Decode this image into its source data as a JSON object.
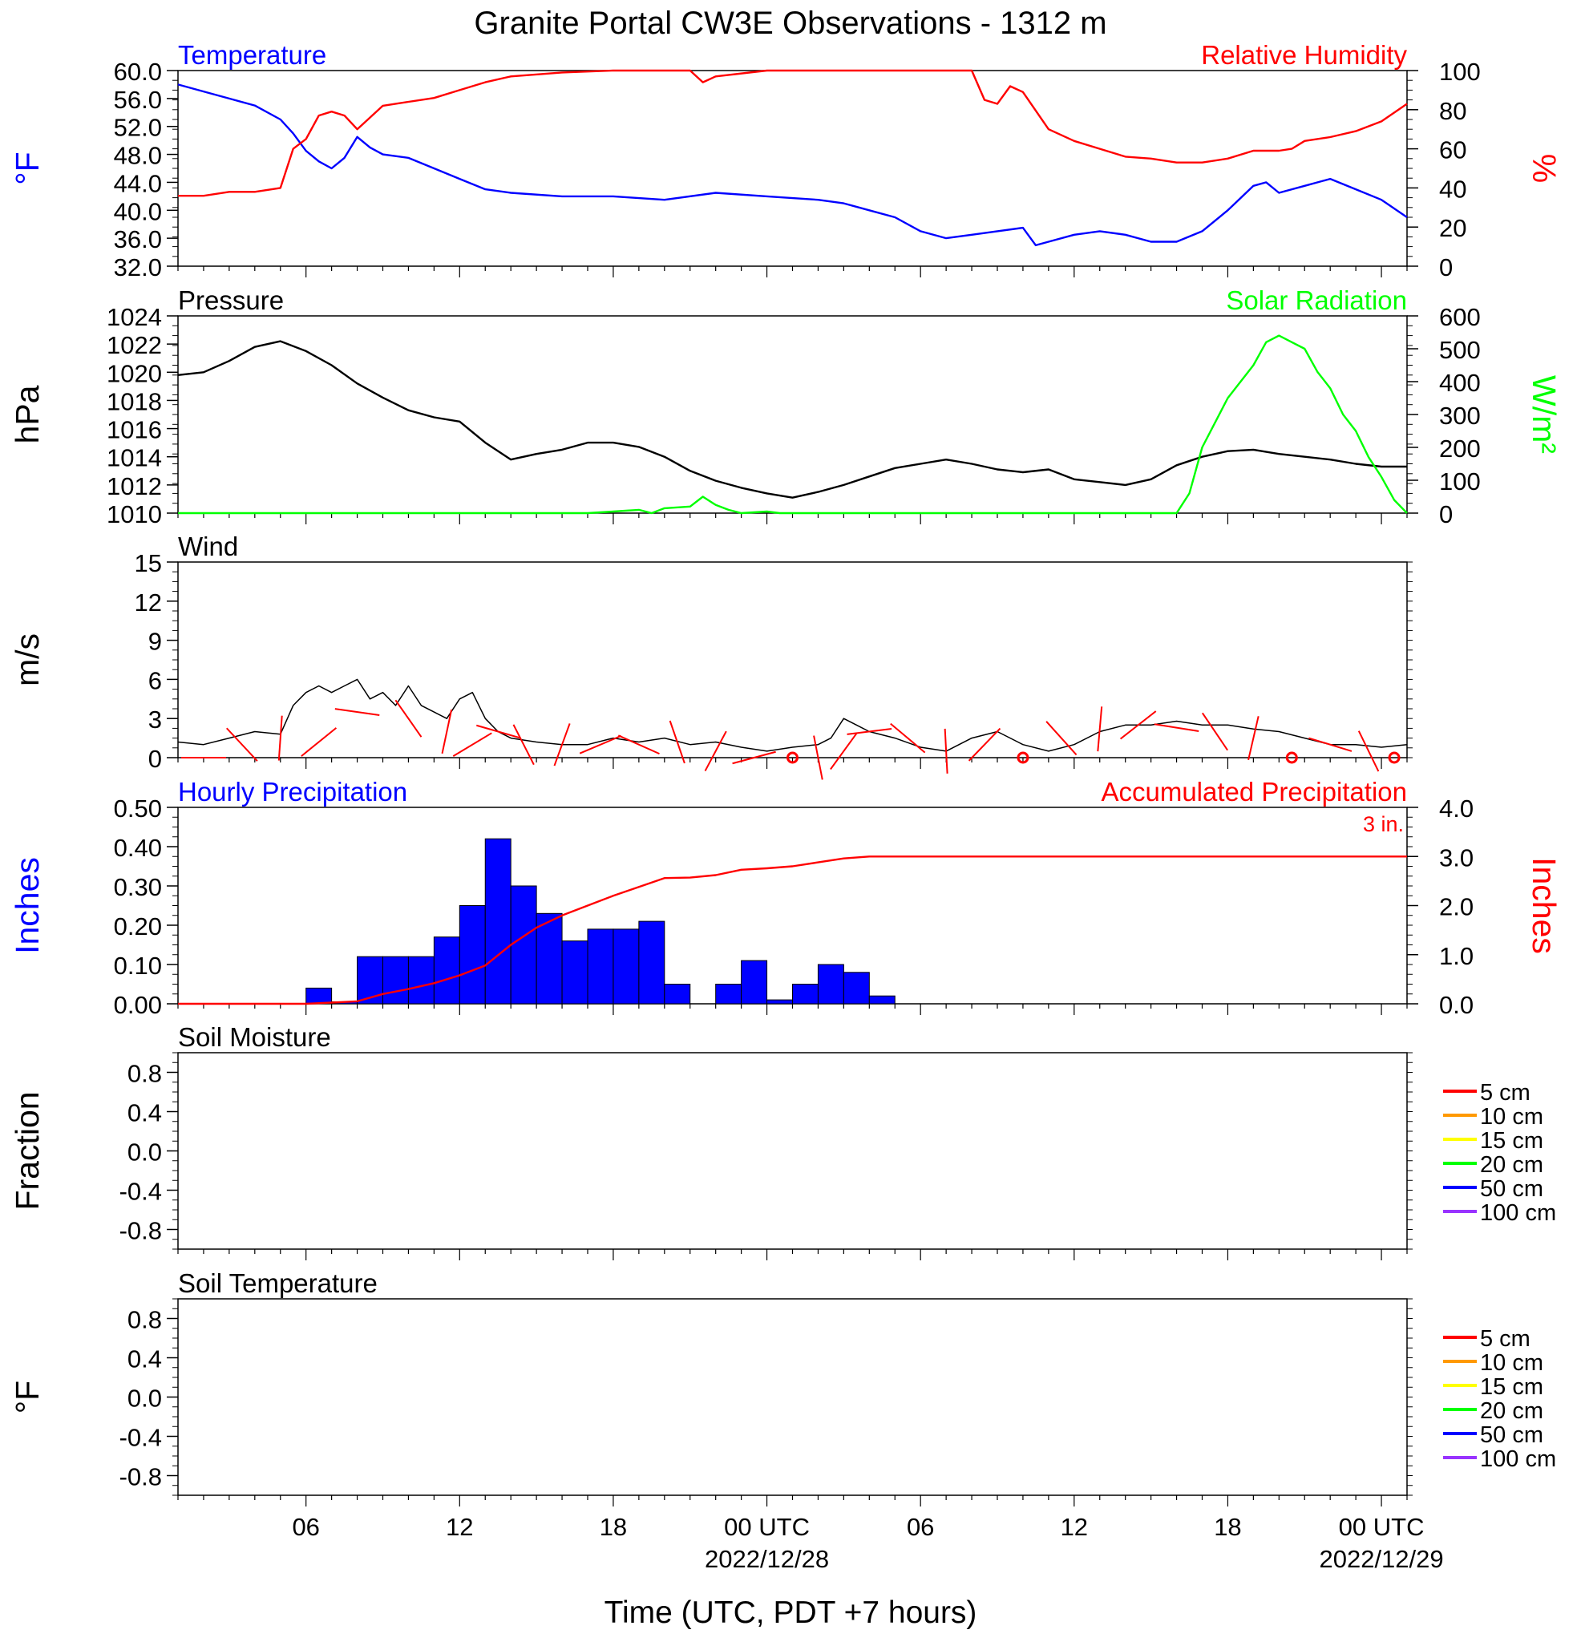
{
  "figure": {
    "title": "Granite Portal CW3E Observations - 1312 m",
    "x_axis_label": "Time (UTC, PDT +7 hours)",
    "x_ticks": [
      {
        "hour": 6,
        "label": "06",
        "date": ""
      },
      {
        "hour": 12,
        "label": "12",
        "date": ""
      },
      {
        "hour": 18,
        "label": "18",
        "date": ""
      },
      {
        "hour": 24,
        "label": "00 UTC",
        "date": "2022/12/28"
      },
      {
        "hour": 30,
        "label": "06",
        "date": ""
      },
      {
        "hour": 36,
        "label": "12",
        "date": ""
      },
      {
        "hour": 42,
        "label": "18",
        "date": ""
      },
      {
        "hour": 48,
        "label": "00 UTC",
        "date": "2022/12/29"
      }
    ],
    "x_range_hours": [
      1,
      49
    ]
  },
  "colors": {
    "temperature": "#0000ff",
    "humidity": "#ff0000",
    "pressure": "#000000",
    "solar": "#00ff00",
    "wind": "#000000",
    "wind_barb": "#ff0000",
    "hourly_precip": "#0000ff",
    "accum_precip": "#ff0000"
  },
  "chart_data": [
    {
      "type": "line",
      "panel": "temperature-humidity",
      "left_title": "Temperature",
      "right_title": "Relative Humidity",
      "ylabel_left": "°F",
      "ylabel_right": "%",
      "ylim_left": [
        32,
        60
      ],
      "ylim_right": [
        0,
        100
      ],
      "yticks_left": [
        "60.0",
        "56.0",
        "52.0",
        "48.0",
        "44.0",
        "40.0",
        "36.0",
        "32.0"
      ],
      "yticks_right": [
        "100",
        "80",
        "60",
        "40",
        "20",
        "0"
      ],
      "series": [
        {
          "name": "Temperature",
          "axis": "left",
          "x": [
            1,
            2,
            3,
            4,
            5,
            5.5,
            6,
            6.5,
            7,
            7.5,
            8,
            8.5,
            9,
            10,
            11,
            12,
            13,
            14,
            16,
            18,
            20,
            22,
            24,
            26,
            27,
            28,
            29,
            30,
            31,
            32,
            33,
            34,
            34.5,
            35,
            36,
            37,
            38,
            39,
            40,
            41,
            42,
            43,
            43.5,
            44,
            45,
            46,
            47,
            48,
            49
          ],
          "y": [
            58,
            57,
            56,
            55,
            53,
            51,
            48.5,
            47,
            46,
            47.5,
            50.5,
            49,
            48,
            47.5,
            46,
            44.5,
            43,
            42.5,
            42,
            42,
            41.5,
            42.5,
            42,
            41.5,
            41,
            40,
            39,
            37,
            36,
            36.5,
            37,
            37.5,
            35,
            35.5,
            36.5,
            37,
            36.5,
            35.5,
            35.5,
            37,
            40,
            43.5,
            44,
            42.5,
            43.5,
            44.5,
            43,
            41.5,
            39
          ]
        },
        {
          "name": "Relative Humidity",
          "axis": "right",
          "x": [
            1,
            2,
            3,
            4,
            5,
            5.5,
            6,
            6.5,
            7,
            7.5,
            8,
            8.5,
            9,
            10,
            11,
            12,
            13,
            14,
            16,
            18,
            20,
            21,
            21.5,
            22,
            24,
            26,
            28,
            30,
            31,
            32,
            32.5,
            33,
            33.5,
            34,
            35,
            36,
            37,
            38,
            39,
            40,
            41,
            42,
            43,
            44,
            44.5,
            45,
            46,
            47,
            48,
            49
          ],
          "y": [
            36,
            36,
            38,
            38,
            40,
            60,
            65,
            77,
            79,
            77,
            70,
            76,
            82,
            84,
            86,
            90,
            94,
            97,
            99,
            100,
            100,
            100,
            94,
            97,
            100,
            100,
            100,
            100,
            100,
            100,
            85,
            83,
            92,
            89,
            70,
            64,
            60,
            56,
            55,
            53,
            53,
            55,
            59,
            59,
            60,
            64,
            66,
            69,
            74,
            83
          ]
        }
      ]
    },
    {
      "type": "line",
      "panel": "pressure-solar",
      "left_title": "Pressure",
      "right_title": "Solar Radiation",
      "ylabel_left": "hPa",
      "ylabel_right": "W/m²",
      "ylim_left": [
        1010,
        1024
      ],
      "ylim_right": [
        0,
        600
      ],
      "yticks_left": [
        "1024",
        "1022",
        "1020",
        "1018",
        "1016",
        "1014",
        "1012",
        "1010"
      ],
      "yticks_right": [
        "600",
        "500",
        "400",
        "300",
        "200",
        "100",
        "0"
      ],
      "series": [
        {
          "name": "Pressure",
          "axis": "left",
          "x": [
            1,
            2,
            3,
            4,
            5,
            6,
            7,
            8,
            9,
            10,
            11,
            12,
            13,
            14,
            15,
            16,
            17,
            18,
            19,
            20,
            21,
            22,
            23,
            24,
            25,
            26,
            27,
            28,
            29,
            30,
            31,
            32,
            33,
            34,
            35,
            36,
            37,
            38,
            39,
            40,
            41,
            42,
            43,
            44,
            45,
            46,
            47,
            48,
            49
          ],
          "y": [
            1019.8,
            1020,
            1020.8,
            1021.8,
            1022.2,
            1021.5,
            1020.5,
            1019.2,
            1018.2,
            1017.3,
            1016.8,
            1016.5,
            1015,
            1013.8,
            1014.2,
            1014.5,
            1015,
            1015,
            1014.7,
            1014,
            1013,
            1012.3,
            1011.8,
            1011.4,
            1011.1,
            1011.5,
            1012,
            1012.6,
            1013.2,
            1013.5,
            1013.8,
            1013.5,
            1013.1,
            1012.9,
            1013.1,
            1012.4,
            1012.2,
            1012,
            1012.4,
            1013.4,
            1014,
            1014.4,
            1014.5,
            1014.2,
            1014,
            1013.8,
            1013.5,
            1013.3,
            1013.3
          ],
          "note": ""
        },
        {
          "name": "Solar Radiation",
          "axis": "right",
          "x": [
            1,
            16,
            17,
            18,
            19,
            19.5,
            20,
            21,
            21.5,
            22,
            22.5,
            23,
            24,
            24.5,
            25,
            40,
            40.5,
            41,
            42,
            43,
            43.5,
            44,
            44.5,
            45,
            45.5,
            46,
            46.5,
            47,
            47.5,
            48,
            48.5,
            49
          ],
          "y": [
            0,
            0,
            0,
            5,
            10,
            0,
            15,
            20,
            50,
            25,
            10,
            0,
            5,
            0,
            0,
            0,
            60,
            200,
            350,
            450,
            520,
            540,
            520,
            500,
            430,
            380,
            300,
            250,
            170,
            110,
            40,
            0
          ]
        }
      ]
    },
    {
      "type": "line",
      "panel": "wind",
      "left_title": "Wind",
      "ylabel_left": "m/s",
      "ylim_left": [
        0,
        15
      ],
      "yticks_left": [
        "15",
        "12",
        "9",
        "6",
        "3",
        "0"
      ],
      "series": [
        {
          "name": "Wind",
          "axis": "left",
          "x": [
            1,
            2,
            3,
            4,
            5,
            5.5,
            6,
            6.5,
            7,
            7.5,
            8,
            8.5,
            9,
            9.5,
            10,
            10.5,
            11,
            11.5,
            12,
            12.5,
            13,
            13.5,
            14,
            15,
            16,
            17,
            18,
            19,
            20,
            21,
            22,
            23,
            24,
            25,
            26,
            26.5,
            27,
            27.5,
            28,
            29,
            30,
            31,
            32,
            33,
            34,
            35,
            36,
            37,
            38,
            39,
            40,
            41,
            42,
            43,
            44,
            45,
            46,
            47,
            48,
            49
          ],
          "y": [
            1.2,
            1,
            1.5,
            2,
            1.8,
            4,
            5,
            5.5,
            5,
            5.5,
            6,
            4.5,
            5,
            4,
            5.5,
            4,
            3.5,
            3,
            4.5,
            5,
            3,
            2,
            1.5,
            1.2,
            1,
            1,
            1.5,
            1.2,
            1.5,
            1,
            1.2,
            0.8,
            0.5,
            0.8,
            1,
            1.5,
            3,
            2.5,
            2,
            1.5,
            0.8,
            0.5,
            1.5,
            2,
            1,
            0.5,
            1,
            2,
            2.5,
            2.5,
            2.8,
            2.5,
            2.5,
            2.2,
            2,
            1.5,
            1,
            1,
            0.8,
            1
          ]
        },
        {
          "name": "Wind barbs",
          "axis": "left",
          "x": [
            2,
            3.5,
            5,
            6.5,
            8,
            10,
            11.5,
            12.5,
            13.5,
            14.5,
            16,
            17.5,
            19,
            20.5,
            22,
            23.5,
            25,
            26,
            27,
            28,
            29.5,
            31,
            32.5,
            34,
            35.5,
            37,
            38.5,
            40,
            41.5,
            43,
            44.5,
            46,
            47.5,
            48.5
          ],
          "y": [
            0,
            1,
            1.5,
            1.2,
            3.5,
            3,
            2,
            1,
            2,
            1,
            1,
            1,
            1,
            1.2,
            0.5,
            0,
            0,
            0,
            0.5,
            2,
            1.5,
            0.5,
            1,
            0,
            1.5,
            2.2,
            2.5,
            2.3,
            2,
            1.5,
            0,
            1,
            0.5,
            0
          ]
        }
      ]
    },
    {
      "type": "bar",
      "panel": "precipitation",
      "left_title": "Hourly Precipitation",
      "right_title": "Accumulated Precipitation",
      "total_label": "3 in.",
      "ylabel_left": "Inches",
      "ylabel_right": "Inches",
      "ylim_left": [
        0,
        0.5
      ],
      "ylim_right": [
        0,
        4
      ],
      "yticks_left": [
        "0.50",
        "0.40",
        "0.30",
        "0.20",
        "0.10",
        "0.00"
      ],
      "yticks_right": [
        "4.0",
        "3.0",
        "2.0",
        "1.0",
        "0.0"
      ],
      "categories": [
        6,
        7,
        8,
        9,
        10,
        11,
        12,
        13,
        14,
        15,
        16,
        17,
        18,
        19,
        20,
        21,
        22,
        23,
        24,
        25,
        26,
        27,
        28
      ],
      "values": [
        0.04,
        0.005,
        0.12,
        0.12,
        0.12,
        0.17,
        0.25,
        0.42,
        0.3,
        0.23,
        0.16,
        0.19,
        0.19,
        0.21,
        0.05,
        0.0,
        0.05,
        0.11,
        0.01,
        0.05,
        0.1,
        0.08,
        0.02
      ],
      "series": [
        {
          "name": "Accumulated Precipitation",
          "axis": "right",
          "x": [
            1,
            6,
            8,
            9,
            10,
            11,
            12,
            13,
            14,
            15,
            16,
            17,
            18,
            19,
            20,
            21,
            22,
            23,
            24,
            25,
            26,
            27,
            28,
            49
          ],
          "y": [
            0,
            0,
            0.05,
            0.2,
            0.3,
            0.42,
            0.58,
            0.78,
            1.2,
            1.55,
            1.8,
            2.0,
            2.2,
            2.38,
            2.56,
            2.57,
            2.62,
            2.73,
            2.76,
            2.8,
            2.88,
            2.96,
            3.0,
            3.0
          ]
        }
      ]
    },
    {
      "type": "line",
      "panel": "soil-moisture",
      "left_title": "Soil Moisture",
      "ylabel_left": "Fraction",
      "ylim_left": [
        -1,
        1
      ],
      "yticks_left": [
        "0.8",
        "0.4",
        "0.0",
        "-0.4",
        "-0.8"
      ],
      "legend": [
        {
          "label": "5 cm",
          "color": "#ff0000"
        },
        {
          "label": "10 cm",
          "color": "#ff9900"
        },
        {
          "label": "15 cm",
          "color": "#ffff00"
        },
        {
          "label": "20 cm",
          "color": "#00ff00"
        },
        {
          "label": "50 cm",
          "color": "#0000ff"
        },
        {
          "label": "100 cm",
          "color": "#9933ff"
        }
      ],
      "series": []
    },
    {
      "type": "line",
      "panel": "soil-temperature",
      "left_title": "Soil Temperature",
      "ylabel_left": "°F",
      "ylim_left": [
        -1,
        1
      ],
      "yticks_left": [
        "0.8",
        "0.4",
        "0.0",
        "-0.4",
        "-0.8"
      ],
      "legend": [
        {
          "label": "5 cm",
          "color": "#ff0000"
        },
        {
          "label": "10 cm",
          "color": "#ff9900"
        },
        {
          "label": "15 cm",
          "color": "#ffff00"
        },
        {
          "label": "20 cm",
          "color": "#00ff00"
        },
        {
          "label": "50 cm",
          "color": "#0000ff"
        },
        {
          "label": "100 cm",
          "color": "#9933ff"
        }
      ],
      "series": []
    }
  ]
}
